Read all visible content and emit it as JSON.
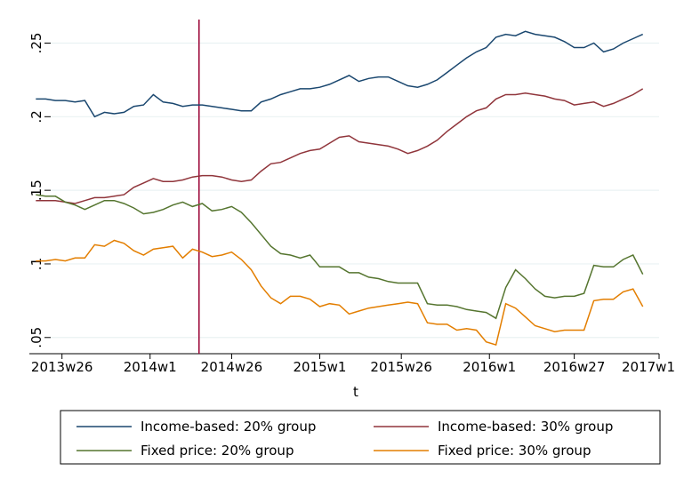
{
  "chart_data": {
    "type": "line",
    "x_label": "t",
    "x": [
      2773,
      2776,
      2779,
      2782,
      2785,
      2788,
      2791,
      2794,
      2797,
      2800,
      2803,
      2806,
      2809,
      2812,
      2815,
      2818,
      2821,
      2824,
      2827,
      2830,
      2833,
      2836,
      2839,
      2842,
      2845,
      2848,
      2851,
      2854,
      2857,
      2860,
      2863,
      2866,
      2869,
      2872,
      2875,
      2878,
      2881,
      2884,
      2887,
      2890,
      2893,
      2896,
      2899,
      2902,
      2905,
      2908,
      2911,
      2914,
      2917,
      2920,
      2923,
      2926,
      2929,
      2932,
      2935,
      2938,
      2941,
      2944,
      2947,
      2950,
      2953,
      2956,
      2959
    ],
    "series": [
      {
        "name": "Income-based: 20% group",
        "color": "#1a476f",
        "values": [
          0.212,
          0.212,
          0.211,
          0.211,
          0.21,
          0.211,
          0.2,
          0.203,
          0.202,
          0.203,
          0.207,
          0.208,
          0.215,
          0.21,
          0.209,
          0.207,
          0.208,
          0.208,
          0.207,
          0.206,
          0.205,
          0.204,
          0.204,
          0.21,
          0.212,
          0.215,
          0.217,
          0.219,
          0.219,
          0.22,
          0.222,
          0.225,
          0.228,
          0.224,
          0.226,
          0.227,
          0.227,
          0.224,
          0.221,
          0.22,
          0.222,
          0.225,
          0.23,
          0.235,
          0.24,
          0.244,
          0.247,
          0.254,
          0.256,
          0.255,
          0.258,
          0.256,
          0.255,
          0.254,
          0.251,
          0.247,
          0.247,
          0.25,
          0.244,
          0.246,
          0.25,
          0.253,
          0.256
        ]
      },
      {
        "name": "Income-based: 30% group",
        "color": "#90353b",
        "values": [
          0.143,
          0.143,
          0.143,
          0.142,
          0.141,
          0.143,
          0.145,
          0.145,
          0.146,
          0.147,
          0.152,
          0.155,
          0.158,
          0.156,
          0.156,
          0.157,
          0.159,
          0.16,
          0.16,
          0.159,
          0.157,
          0.156,
          0.157,
          0.163,
          0.168,
          0.169,
          0.172,
          0.175,
          0.177,
          0.178,
          0.182,
          0.186,
          0.187,
          0.183,
          0.182,
          0.181,
          0.18,
          0.178,
          0.175,
          0.177,
          0.18,
          0.184,
          0.19,
          0.195,
          0.2,
          0.204,
          0.206,
          0.212,
          0.215,
          0.215,
          0.216,
          0.215,
          0.214,
          0.212,
          0.211,
          0.208,
          0.209,
          0.21,
          0.207,
          0.209,
          0.212,
          0.215,
          0.219
        ]
      },
      {
        "name": "Fixed price: 20% group",
        "color": "#55752f",
        "values": [
          0.147,
          0.146,
          0.146,
          0.142,
          0.14,
          0.137,
          0.14,
          0.143,
          0.143,
          0.141,
          0.138,
          0.134,
          0.135,
          0.137,
          0.14,
          0.142,
          0.139,
          0.141,
          0.136,
          0.137,
          0.139,
          0.135,
          0.128,
          0.12,
          0.112,
          0.107,
          0.106,
          0.104,
          0.106,
          0.098,
          0.098,
          0.098,
          0.094,
          0.094,
          0.091,
          0.09,
          0.088,
          0.087,
          0.087,
          0.087,
          0.073,
          0.072,
          0.072,
          0.071,
          0.069,
          0.068,
          0.067,
          0.063,
          0.084,
          0.096,
          0.09,
          0.083,
          0.078,
          0.077,
          0.078,
          0.078,
          0.08,
          0.099,
          0.098,
          0.098,
          0.103,
          0.106,
          0.093
        ]
      },
      {
        "name": "Fixed price: 30% group",
        "color": "#e37e00",
        "values": [
          0.102,
          0.102,
          0.103,
          0.102,
          0.104,
          0.104,
          0.113,
          0.112,
          0.116,
          0.114,
          0.109,
          0.106,
          0.11,
          0.111,
          0.112,
          0.104,
          0.11,
          0.108,
          0.105,
          0.106,
          0.108,
          0.103,
          0.096,
          0.085,
          0.077,
          0.073,
          0.078,
          0.078,
          0.076,
          0.071,
          0.073,
          0.072,
          0.066,
          0.068,
          0.07,
          0.071,
          0.072,
          0.073,
          0.074,
          0.073,
          0.06,
          0.059,
          0.059,
          0.055,
          0.056,
          0.055,
          0.047,
          0.045,
          0.073,
          0.07,
          0.064,
          0.058,
          0.056,
          0.054,
          0.055,
          0.055,
          0.055,
          0.075,
          0.076,
          0.076,
          0.081,
          0.083,
          0.071
        ]
      }
    ],
    "xlim": [
      2771,
      2964
    ],
    "xticks": [
      {
        "value": 2781,
        "label": "2013w26"
      },
      {
        "value": 2808,
        "label": "2014w1"
      },
      {
        "value": 2833,
        "label": "2014w26"
      },
      {
        "value": 2860,
        "label": "2015w1"
      },
      {
        "value": 2885,
        "label": "2015w26"
      },
      {
        "value": 2912,
        "label": "2016w1"
      },
      {
        "value": 2938,
        "label": "2016w27"
      },
      {
        "value": 2964,
        "label": "2017w1"
      }
    ],
    "ylim": [
      0.039,
      0.266
    ],
    "yticks": [
      {
        "value": 0.05,
        "label": ".05"
      },
      {
        "value": 0.1,
        "label": ".1"
      },
      {
        "value": 0.15,
        "label": ".15"
      },
      {
        "value": 0.2,
        "label": ".2"
      },
      {
        "value": 0.25,
        "label": ".25"
      }
    ],
    "xline": 2823,
    "xline_color": "#990033",
    "grid": true
  }
}
